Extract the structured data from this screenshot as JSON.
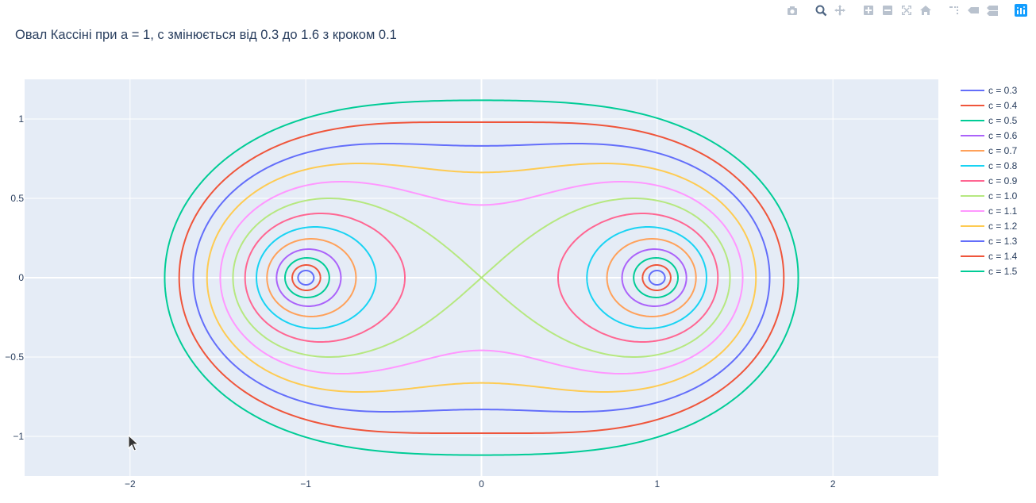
{
  "title": "Овал Кассіні при a = 1, c змінюється від 0.3 до 1.6 з кроком 0.1",
  "toolbar": {
    "icons": [
      "camera-icon",
      "zoom-icon",
      "pan-icon",
      "zoom-in-icon",
      "zoom-out-icon",
      "autoscale-icon",
      "home-icon",
      "spike-lines-icon",
      "hover-closest-icon",
      "hover-compare-icon",
      "plotly-logo-icon"
    ]
  },
  "chart_data": {
    "type": "line",
    "title": "Овал Кассіні при a = 1, c змінюється від 0.3 до 1.6 з кроком 0.1",
    "a": 1,
    "xlim": [
      -2.6,
      2.6
    ],
    "ylim": [
      -1.25,
      1.25
    ],
    "xticks": [
      -2,
      -1,
      0,
      1,
      2
    ],
    "yticks": [
      -1,
      -0.5,
      0,
      0.5,
      1
    ],
    "xtick_labels": [
      "−2",
      "−1",
      "0",
      "1",
      "2"
    ],
    "ytick_labels": [
      "−1",
      "−0.5",
      "0",
      "0.5",
      "1"
    ],
    "grid": true,
    "legend_position": "right",
    "background": "#E5ECF6",
    "series": [
      {
        "name": "c = 0.3",
        "c": 0.3,
        "color": "#636EFA"
      },
      {
        "name": "c = 0.4",
        "c": 0.4,
        "color": "#EF553B"
      },
      {
        "name": "c = 0.5",
        "c": 0.5,
        "color": "#00CC96"
      },
      {
        "name": "c = 0.6",
        "c": 0.6,
        "color": "#AB63FA"
      },
      {
        "name": "c = 0.7",
        "c": 0.7,
        "color": "#FFA15A"
      },
      {
        "name": "c = 0.8",
        "c": 0.8,
        "color": "#19D3F3"
      },
      {
        "name": "c = 0.9",
        "c": 0.9,
        "color": "#FF6692"
      },
      {
        "name": "c = 1.0",
        "c": 1.0,
        "color": "#B6E880"
      },
      {
        "name": "c = 1.1",
        "c": 1.1,
        "color": "#FF97FF"
      },
      {
        "name": "c = 1.2",
        "c": 1.2,
        "color": "#FECB52"
      },
      {
        "name": "c = 1.3",
        "c": 1.3,
        "color": "#636EFA"
      },
      {
        "name": "c = 1.4",
        "c": 1.4,
        "color": "#EF553B"
      },
      {
        "name": "c = 1.5",
        "c": 1.5,
        "color": "#00CC96"
      }
    ]
  }
}
